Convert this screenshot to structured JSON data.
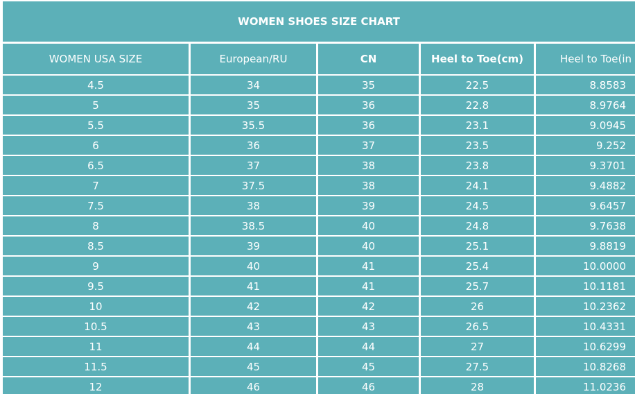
{
  "header": {
    "title": "WOMEN SHOES SIZE CHART"
  },
  "table": {
    "columns": [
      "WOMEN USA SIZE",
      "European/RU",
      "CN",
      "Heel to Toe(cm)",
      "Heel to Toe(in"
    ],
    "rows": [
      [
        "4.5",
        "34",
        "35",
        "22.5",
        "8.8583"
      ],
      [
        "5",
        "35",
        "36",
        "22.8",
        "8.9764"
      ],
      [
        "5.5",
        "35.5",
        "36",
        "23.1",
        "9.0945"
      ],
      [
        "6",
        "36",
        "37",
        "23.5",
        "9.252"
      ],
      [
        "6.5",
        "37",
        "38",
        "23.8",
        "9.3701"
      ],
      [
        "7",
        "37.5",
        "38",
        "24.1",
        "9.4882"
      ],
      [
        "7.5",
        "38",
        "39",
        "24.5",
        "9.6457"
      ],
      [
        "8",
        "38.5",
        "40",
        "24.8",
        "9.7638"
      ],
      [
        "8.5",
        "39",
        "40",
        "25.1",
        "9.8819"
      ],
      [
        "9",
        "40",
        "41",
        "25.4",
        "10.0000"
      ],
      [
        "9.5",
        "41",
        "41",
        "25.7",
        "10.1181"
      ],
      [
        "10",
        "42",
        "42",
        "26",
        "10.2362"
      ],
      [
        "10.5",
        "43",
        "43",
        "26.5",
        "10.4331"
      ],
      [
        "11",
        "44",
        "44",
        "27",
        "10.6299"
      ],
      [
        "11.5",
        "45",
        "45",
        "27.5",
        "10.8268"
      ],
      [
        "12",
        "46",
        "46",
        "28",
        "11.0236"
      ]
    ]
  }
}
